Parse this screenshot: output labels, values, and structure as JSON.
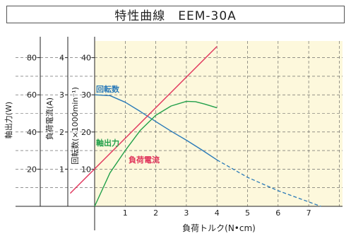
{
  "chart_data": {
    "type": "line",
    "title": "特性曲線　EEM-30A",
    "xlabel": "負荷トルク(N•cm)",
    "xlim": [
      0,
      8
    ],
    "x_ticks": [
      1,
      2,
      3,
      4,
      5,
      6,
      7
    ],
    "axes": [
      {
        "id": "power",
        "label": "軸出力(W)",
        "lim": [
          0,
          90
        ],
        "ticks": [
          20,
          40,
          60,
          80
        ]
      },
      {
        "id": "current",
        "label": "負荷電流(A)",
        "lim": [
          0,
          4.5
        ],
        "ticks": [
          1,
          2,
          3,
          4
        ]
      },
      {
        "id": "speed",
        "label": "回転数(×1000min⁻¹)",
        "lim": [
          0,
          45
        ],
        "ticks": [
          10,
          20,
          30,
          40
        ]
      }
    ],
    "grid": true,
    "series": [
      {
        "name": "回転数",
        "axis": "speed",
        "color": "#2a7ab8",
        "x": [
          0,
          0.5,
          1,
          1.5,
          2,
          2.5,
          3,
          3.5,
          4
        ],
        "y": [
          30,
          29.8,
          28,
          25.5,
          22.8,
          20.2,
          17.8,
          15.2,
          12.5
        ],
        "dashed_x": [
          4,
          5,
          6,
          7,
          7.4
        ],
        "dashed_y": [
          12.5,
          7.8,
          4.2,
          1.2,
          0
        ]
      },
      {
        "name": "軸出力",
        "axis": "power",
        "color": "#22a04a",
        "x": [
          0,
          0.5,
          1,
          1.5,
          2,
          2.5,
          3,
          3.3,
          3.6,
          4
        ],
        "y": [
          0,
          18,
          30,
          41,
          49,
          54,
          56.5,
          56.3,
          55,
          53
        ]
      },
      {
        "name": "負荷電流",
        "axis": "current",
        "color": "#e0335a",
        "x": [
          -0.8,
          4
        ],
        "y": [
          0.35,
          4.3
        ]
      }
    ]
  }
}
